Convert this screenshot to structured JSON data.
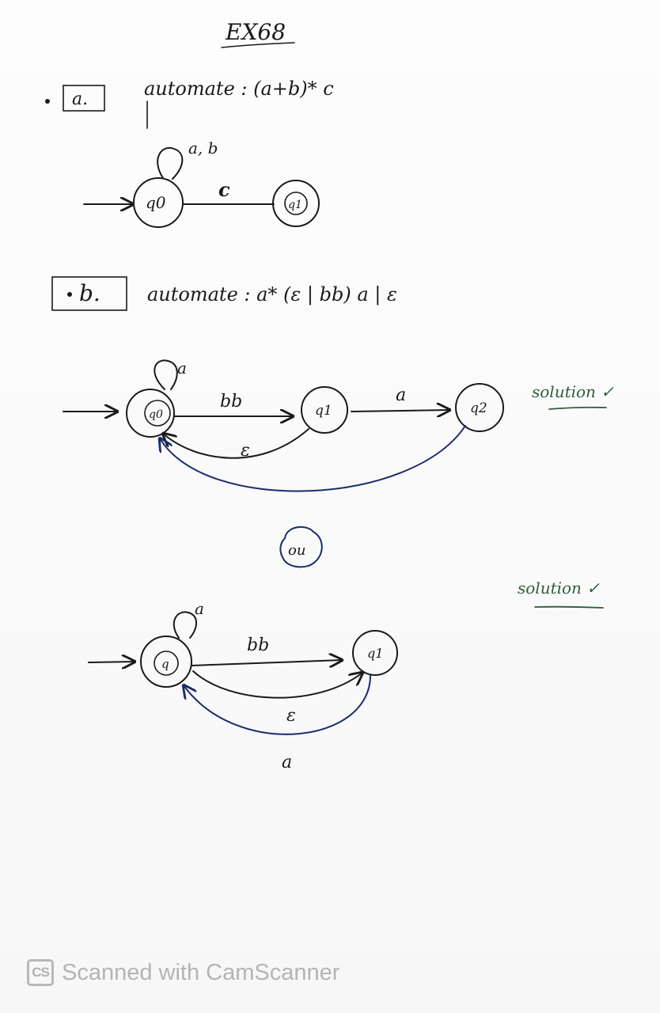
{
  "title": "EX68",
  "part_a": {
    "marker": "a.",
    "heading": "automate : (a+b)* c",
    "states": [
      "q0",
      "q1"
    ],
    "loop_label": "a, b",
    "edge_label": "c"
  },
  "part_b": {
    "marker": "b.",
    "heading": "automate : a* (ε | bb) a | ε",
    "solution1": {
      "states": [
        "q0",
        "q1",
        "q2"
      ],
      "loop_label": "a",
      "edge_bb": "bb",
      "edge_a": "a",
      "edge_eps": "ε",
      "check": "solution ✓"
    },
    "ou": "ou",
    "solution2": {
      "states": [
        "q",
        "q1"
      ],
      "loop_label": "a",
      "edge_bb": "bb",
      "edge_eps": "ε",
      "edge_a": "a",
      "check": "solution ✓"
    }
  },
  "footer": {
    "logo": "CS",
    "text": "Scanned with CamScanner"
  }
}
